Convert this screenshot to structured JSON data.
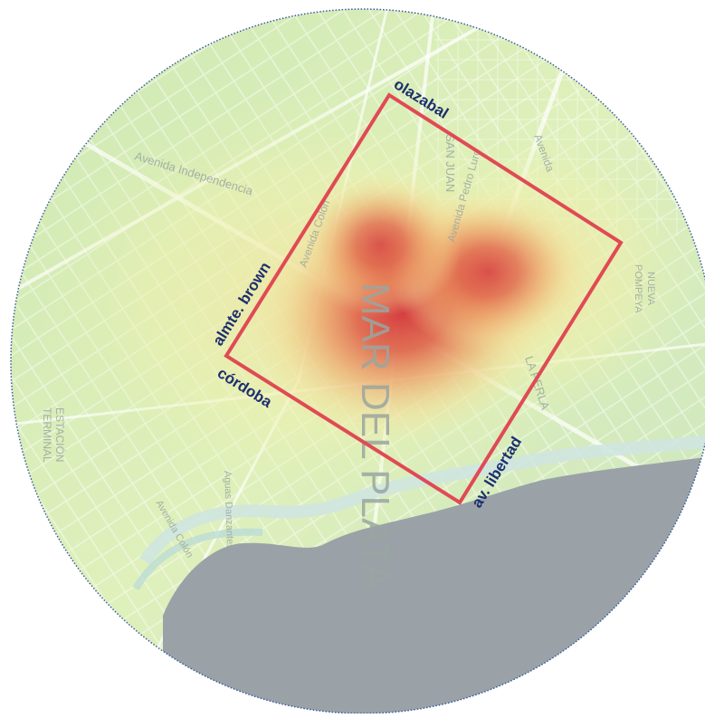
{
  "map": {
    "colors": {
      "boundary": "#e04a55",
      "street_label": "#1d2f6e",
      "sea": "#9aa2a7",
      "heat_core": "#d8373a",
      "heat_outer": "#b9e09a"
    },
    "base_labels": {
      "city": "MAR DEL PLATA",
      "station": "ESTACIÓN TERMINAL",
      "station_line1": "ESTACIÓN",
      "station_line2": "TERMINAL",
      "neighborhood": "NUEVA POMPEYA",
      "neighborhood_line1": "NUEVA",
      "neighborhood_line2": "POMPEYA",
      "la_perla": "LA PERLA",
      "san_juan": "SAN JUAN",
      "av_independencia": "Avenida Independencia",
      "av_colon": "Avenida Colón",
      "av_colon_coast": "Avenida Colón",
      "av_pedro_luro": "Avenida Pedro Luro",
      "avenida": "Avenida",
      "aguas_danzantes": "Aguas Danzantes"
    },
    "street_labels": {
      "olazabal": "olazabal",
      "almte_brown": "almte. brown",
      "cordoba": "córdoba",
      "av_libertad": "av. libertad"
    }
  }
}
